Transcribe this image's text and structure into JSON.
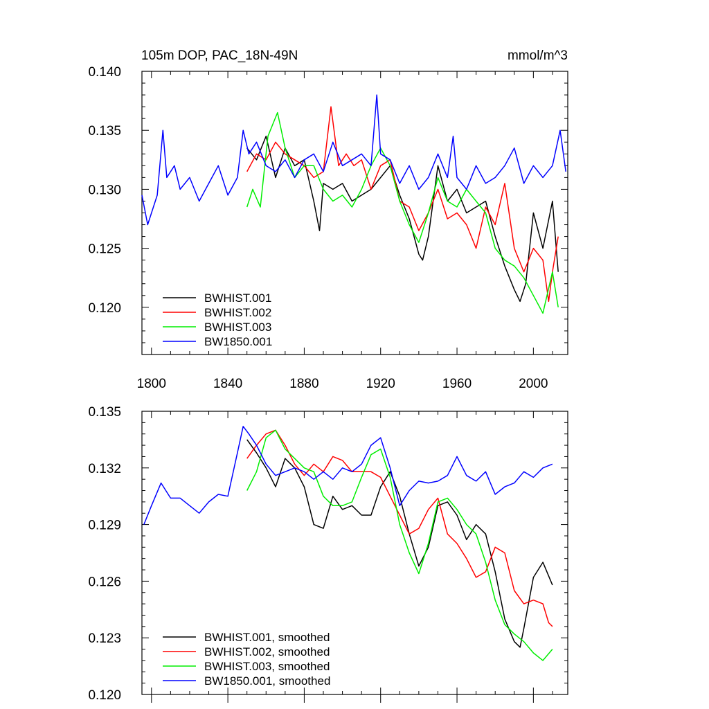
{
  "chart_data": [
    {
      "type": "line",
      "title": "105m DOP, PAC_18N-49N",
      "units": "mmol/m^3",
      "xlabel": "",
      "ylabel": "",
      "xlim": [
        1795,
        2018
      ],
      "ylim": [
        0.116,
        0.14
      ],
      "xticks": [
        1800,
        1840,
        1880,
        1920,
        1960,
        2000
      ],
      "yticks": [
        0.12,
        0.125,
        0.13,
        0.135,
        0.14
      ],
      "ytick_labels": [
        "0.120",
        "0.125",
        "0.130",
        "0.135",
        "0.140"
      ],
      "legend_position": "bottom-left",
      "series": [
        {
          "name": "BWHIST.001",
          "color": "#000000",
          "x": [
            1850,
            1855,
            1860,
            1865,
            1870,
            1875,
            1880,
            1885,
            1888,
            1890,
            1895,
            1900,
            1905,
            1910,
            1915,
            1920,
            1925,
            1930,
            1935,
            1940,
            1942,
            1945,
            1950,
            1955,
            1960,
            1965,
            1970,
            1975,
            1980,
            1985,
            1990,
            1993,
            1996,
            2000,
            2005,
            2010,
            2013
          ],
          "y": [
            0.1335,
            0.1325,
            0.1345,
            0.131,
            0.1335,
            0.132,
            0.1325,
            0.129,
            0.1265,
            0.1305,
            0.13,
            0.1305,
            0.129,
            0.1295,
            0.13,
            0.131,
            0.132,
            0.1295,
            0.1275,
            0.1245,
            0.124,
            0.126,
            0.132,
            0.129,
            0.13,
            0.128,
            0.1285,
            0.129,
            0.126,
            0.1235,
            0.1215,
            0.1205,
            0.122,
            0.128,
            0.125,
            0.129,
            0.123
          ]
        },
        {
          "name": "BWHIST.002",
          "color": "#ff0000",
          "x": [
            1850,
            1855,
            1860,
            1865,
            1870,
            1875,
            1880,
            1885,
            1890,
            1894,
            1898,
            1902,
            1906,
            1910,
            1915,
            1920,
            1925,
            1930,
            1935,
            1940,
            1945,
            1950,
            1955,
            1960,
            1965,
            1970,
            1975,
            1980,
            1985,
            1990,
            1995,
            2000,
            2005,
            2008,
            2010,
            2013
          ],
          "y": [
            0.1315,
            0.133,
            0.1325,
            0.134,
            0.133,
            0.1325,
            0.132,
            0.131,
            0.1315,
            0.137,
            0.132,
            0.133,
            0.132,
            0.1325,
            0.13,
            0.132,
            0.1325,
            0.129,
            0.1285,
            0.1265,
            0.128,
            0.13,
            0.1275,
            0.128,
            0.127,
            0.125,
            0.1285,
            0.127,
            0.1305,
            0.125,
            0.123,
            0.125,
            0.124,
            0.1205,
            0.123,
            0.126
          ]
        },
        {
          "name": "BWHIST.003",
          "color": "#00ee00",
          "x": [
            1850,
            1853,
            1857,
            1861,
            1866,
            1870,
            1875,
            1880,
            1885,
            1890,
            1895,
            1900,
            1905,
            1910,
            1915,
            1920,
            1925,
            1930,
            1935,
            1940,
            1945,
            1950,
            1955,
            1960,
            1965,
            1970,
            1975,
            1980,
            1985,
            1990,
            1995,
            2000,
            2005,
            2010,
            2013
          ],
          "y": [
            0.1285,
            0.13,
            0.1285,
            0.1345,
            0.1365,
            0.1335,
            0.131,
            0.132,
            0.132,
            0.13,
            0.129,
            0.1295,
            0.1285,
            0.13,
            0.132,
            0.1335,
            0.132,
            0.129,
            0.127,
            0.1255,
            0.128,
            0.131,
            0.129,
            0.1285,
            0.13,
            0.129,
            0.128,
            0.125,
            0.124,
            0.1235,
            0.1225,
            0.121,
            0.1195,
            0.123,
            0.12
          ]
        },
        {
          "name": "BW1850.001",
          "color": "#0000ff",
          "x": [
            1795,
            1798,
            1800,
            1803,
            1806,
            1808,
            1812,
            1815,
            1820,
            1825,
            1830,
            1835,
            1840,
            1845,
            1848,
            1851,
            1855,
            1860,
            1865,
            1870,
            1875,
            1880,
            1885,
            1890,
            1895,
            1900,
            1905,
            1910,
            1915,
            1918,
            1920,
            1925,
            1930,
            1935,
            1940,
            1945,
            1950,
            1955,
            1958,
            1960,
            1965,
            1970,
            1975,
            1980,
            1985,
            1990,
            1995,
            2000,
            2005,
            2010,
            2014,
            2017
          ],
          "y": [
            0.1295,
            0.127,
            0.128,
            0.1295,
            0.135,
            0.131,
            0.132,
            0.13,
            0.131,
            0.129,
            0.1305,
            0.132,
            0.1295,
            0.131,
            0.135,
            0.133,
            0.134,
            0.132,
            0.1315,
            0.1325,
            0.131,
            0.1325,
            0.133,
            0.1315,
            0.134,
            0.132,
            0.1325,
            0.133,
            0.132,
            0.138,
            0.133,
            0.1325,
            0.1305,
            0.132,
            0.13,
            0.131,
            0.133,
            0.131,
            0.1345,
            0.131,
            0.13,
            0.132,
            0.1305,
            0.131,
            0.132,
            0.1335,
            0.1305,
            0.132,
            0.131,
            0.132,
            0.135,
            0.1315
          ]
        }
      ]
    },
    {
      "type": "line",
      "title": "",
      "xlabel": "",
      "ylabel": "",
      "xlim": [
        1795,
        2018
      ],
      "ylim": [
        0.12,
        0.135
      ],
      "xticks": [
        1800,
        1840,
        1880,
        1920,
        1960,
        2000
      ],
      "yticks": [
        0.12,
        0.123,
        0.126,
        0.129,
        0.132,
        0.135
      ],
      "ytick_labels": [
        "0.120",
        "0.123",
        "0.126",
        "0.129",
        "0.132",
        "0.135"
      ],
      "legend_position": "bottom-left",
      "series": [
        {
          "name": "BWHIST.001, smoothed",
          "color": "#000000",
          "x": [
            1850,
            1855,
            1860,
            1865,
            1870,
            1875,
            1880,
            1885,
            1890,
            1895,
            1900,
            1905,
            1910,
            1915,
            1920,
            1925,
            1930,
            1935,
            1940,
            1945,
            1950,
            1955,
            1960,
            1965,
            1970,
            1975,
            1980,
            1985,
            1990,
            1993,
            1995,
            2000,
            2005,
            2010
          ],
          "y": [
            0.1335,
            0.1328,
            0.132,
            0.131,
            0.1325,
            0.132,
            0.131,
            0.129,
            0.1288,
            0.1305,
            0.1298,
            0.13,
            0.1295,
            0.1295,
            0.131,
            0.1318,
            0.1305,
            0.1285,
            0.1268,
            0.1278,
            0.13,
            0.1302,
            0.1295,
            0.1282,
            0.129,
            0.1285,
            0.1265,
            0.124,
            0.1228,
            0.1225,
            0.1235,
            0.1262,
            0.127,
            0.1258
          ]
        },
        {
          "name": "BWHIST.002, smoothed",
          "color": "#ff0000",
          "x": [
            1850,
            1855,
            1860,
            1865,
            1870,
            1875,
            1880,
            1885,
            1890,
            1895,
            1900,
            1905,
            1910,
            1915,
            1920,
            1925,
            1930,
            1935,
            1940,
            1945,
            1950,
            1955,
            1960,
            1965,
            1970,
            1975,
            1980,
            1985,
            1990,
            1995,
            2000,
            2005,
            2008,
            2010
          ],
          "y": [
            0.1325,
            0.1332,
            0.1338,
            0.134,
            0.1332,
            0.1322,
            0.1316,
            0.1322,
            0.1318,
            0.1326,
            0.1324,
            0.1318,
            0.1318,
            0.1318,
            0.1315,
            0.1305,
            0.1295,
            0.1285,
            0.1288,
            0.1298,
            0.1304,
            0.1285,
            0.128,
            0.1272,
            0.1262,
            0.1265,
            0.1278,
            0.1275,
            0.1255,
            0.1248,
            0.125,
            0.1248,
            0.1238,
            0.1236
          ]
        },
        {
          "name": "BWHIST.003, smoothed",
          "color": "#00ee00",
          "x": [
            1850,
            1855,
            1860,
            1865,
            1870,
            1875,
            1880,
            1885,
            1890,
            1895,
            1900,
            1905,
            1910,
            1915,
            1920,
            1925,
            1930,
            1935,
            1940,
            1945,
            1950,
            1955,
            1960,
            1965,
            1970,
            1975,
            1980,
            1985,
            1990,
            1995,
            2000,
            2005,
            2010
          ],
          "y": [
            0.1308,
            0.1318,
            0.1336,
            0.134,
            0.133,
            0.1325,
            0.132,
            0.1318,
            0.1305,
            0.13,
            0.13,
            0.1302,
            0.1315,
            0.1327,
            0.133,
            0.1315,
            0.129,
            0.1275,
            0.1264,
            0.128,
            0.1302,
            0.1304,
            0.1298,
            0.129,
            0.1285,
            0.127,
            0.125,
            0.1237,
            0.1232,
            0.1228,
            0.1222,
            0.1218,
            0.1224
          ]
        },
        {
          "name": "BW1850.001, smoothed",
          "color": "#0000ff",
          "x": [
            1796,
            1800,
            1805,
            1810,
            1815,
            1820,
            1825,
            1830,
            1835,
            1840,
            1845,
            1848,
            1851,
            1855,
            1860,
            1865,
            1870,
            1875,
            1880,
            1885,
            1890,
            1895,
            1900,
            1905,
            1910,
            1915,
            1920,
            1925,
            1930,
            1935,
            1940,
            1945,
            1950,
            1955,
            1960,
            1965,
            1970,
            1975,
            1980,
            1985,
            1990,
            1995,
            2000,
            2005,
            2010
          ],
          "y": [
            0.129,
            0.13,
            0.1312,
            0.1304,
            0.1304,
            0.13,
            0.1296,
            0.1302,
            0.1306,
            0.1305,
            0.1328,
            0.1342,
            0.1338,
            0.1332,
            0.1322,
            0.1316,
            0.1318,
            0.132,
            0.1318,
            0.1314,
            0.1318,
            0.1314,
            0.132,
            0.1318,
            0.1322,
            0.1332,
            0.1336,
            0.132,
            0.13,
            0.1308,
            0.1313,
            0.1312,
            0.1313,
            0.1316,
            0.1326,
            0.1316,
            0.1313,
            0.1318,
            0.1306,
            0.131,
            0.1312,
            0.1318,
            0.1315,
            0.132,
            0.1322
          ]
        }
      ]
    }
  ]
}
